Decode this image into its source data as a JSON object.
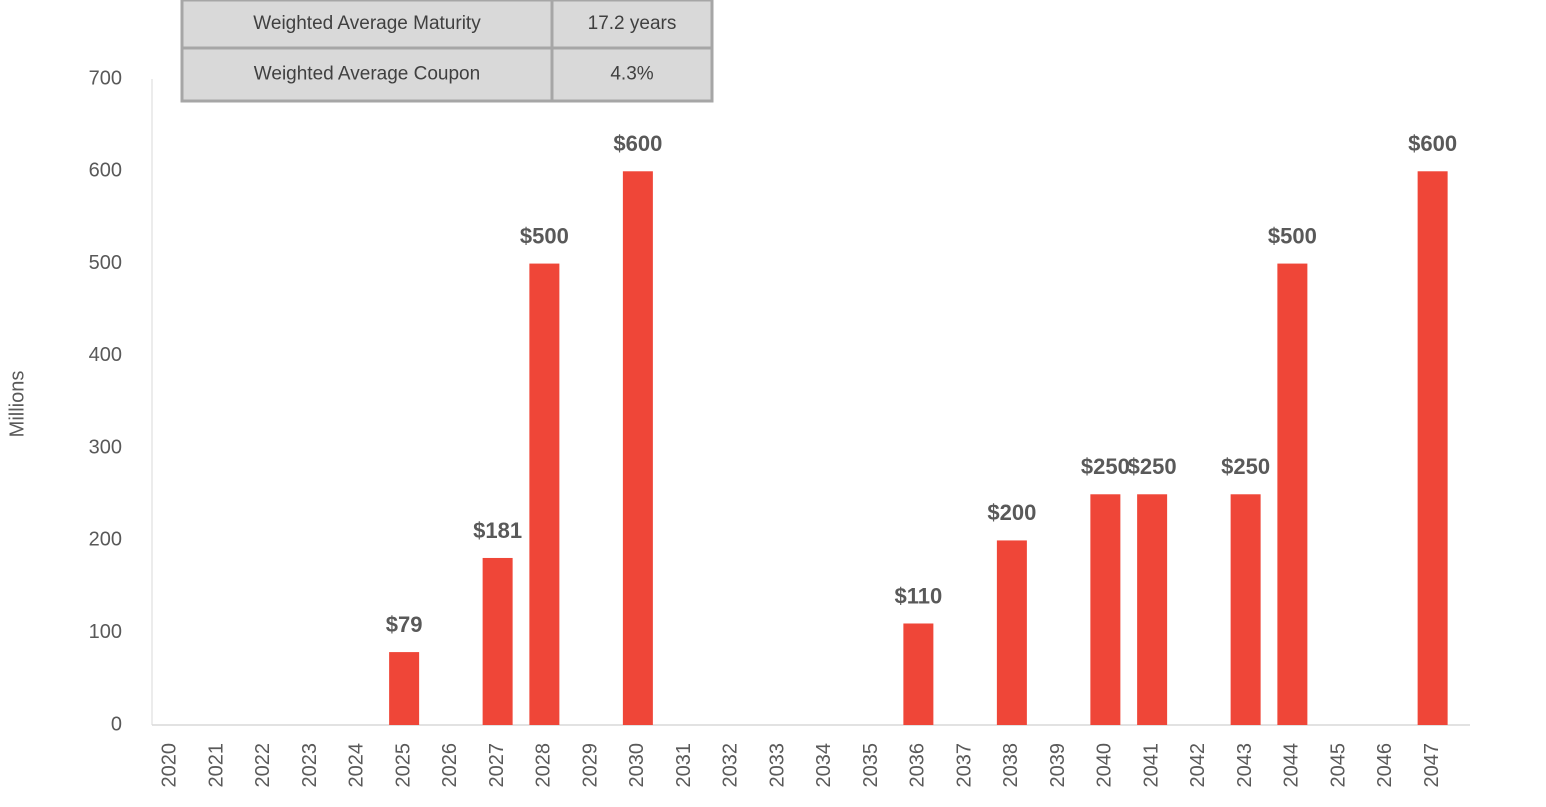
{
  "chart_data": {
    "type": "bar",
    "y_label": "Millions",
    "categories": [
      "2020",
      "2021",
      "2022",
      "2023",
      "2024",
      "2025",
      "2026",
      "2027",
      "2028",
      "2029",
      "2030",
      "2031",
      "2032",
      "2033",
      "2034",
      "2035",
      "2036",
      "2037",
      "2038",
      "2039",
      "2040",
      "2041",
      "2042",
      "2043",
      "2044",
      "2045",
      "2046",
      "2047"
    ],
    "values": [
      null,
      null,
      null,
      null,
      null,
      79,
      null,
      181,
      500,
      null,
      600,
      null,
      null,
      null,
      null,
      null,
      110,
      null,
      200,
      null,
      250,
      250,
      null,
      250,
      500,
      null,
      null,
      600
    ],
    "value_labels": [
      null,
      null,
      null,
      null,
      null,
      "$79",
      null,
      "$181",
      "$500",
      null,
      "$600",
      null,
      null,
      null,
      null,
      null,
      "$110",
      null,
      "$200",
      null,
      "$250",
      "$250",
      null,
      "$250",
      "$500",
      null,
      null,
      "$600"
    ],
    "color": "#ef4638",
    "ylim": [
      0,
      700
    ],
    "yticks": [
      0,
      100,
      200,
      300,
      400,
      500,
      600,
      700
    ],
    "grid": false,
    "table": {
      "rows": [
        [
          "Weighted Average Maturity",
          "17.2 years"
        ],
        [
          "Weighted Average Coupon",
          "4.3%"
        ]
      ]
    }
  }
}
